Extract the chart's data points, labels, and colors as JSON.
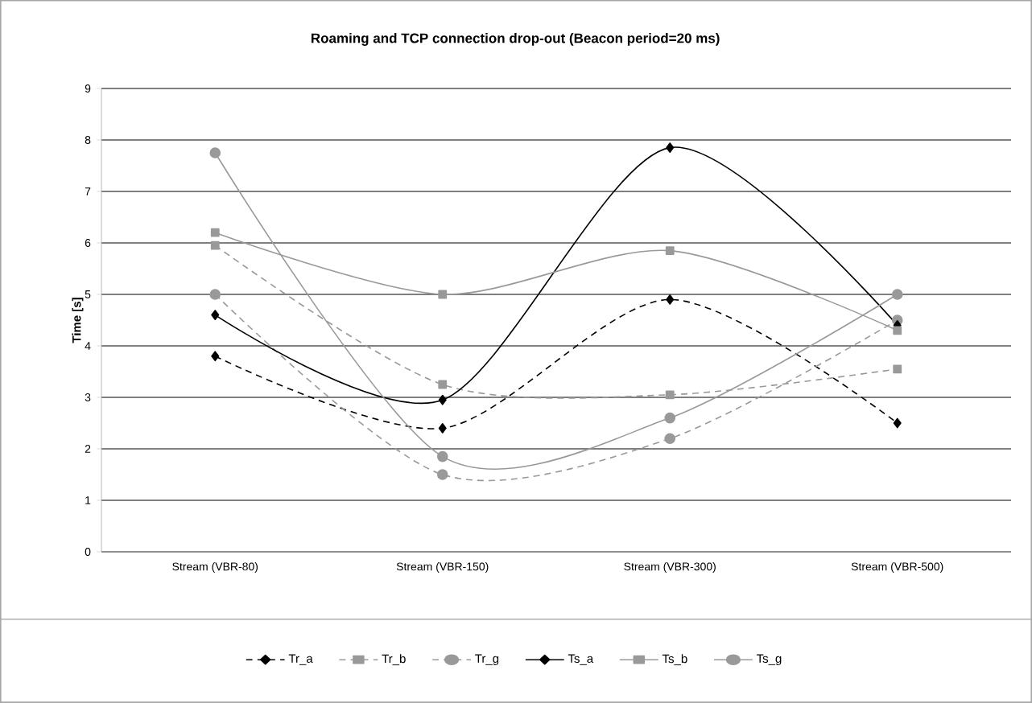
{
  "chart_data": {
    "type": "line",
    "title": "Roaming and TCP connection drop-out (Beacon period=20 ms)",
    "ylabel": "Time [s]",
    "categories": [
      "Stream (VBR-80)",
      "Stream (VBR-150)",
      "Stream (VBR-300)",
      "Stream (VBR-500)"
    ],
    "series": [
      {
        "name": "Tr_a",
        "color": "#000000",
        "marker": "diamond",
        "line_style": "dashed",
        "values": [
          3.8,
          2.4,
          4.9,
          2.5
        ]
      },
      {
        "name": "Tr_b",
        "color": "#999999",
        "marker": "square",
        "line_style": "dashed",
        "values": [
          5.95,
          3.25,
          3.05,
          3.55
        ]
      },
      {
        "name": "Tr_g",
        "color": "#999999",
        "marker": "circle",
        "line_style": "dashed",
        "values": [
          5.0,
          1.5,
          2.2,
          4.5
        ]
      },
      {
        "name": "Ts_a",
        "color": "#000000",
        "marker": "diamond",
        "line_style": "solid",
        "values": [
          4.6,
          2.95,
          7.85,
          4.4
        ]
      },
      {
        "name": "Ts_b",
        "color": "#999999",
        "marker": "square",
        "line_style": "solid",
        "values": [
          6.2,
          5.0,
          5.85,
          4.3
        ]
      },
      {
        "name": "Ts_g",
        "color": "#999999",
        "marker": "circle",
        "line_style": "solid",
        "values": [
          7.75,
          1.85,
          2.6,
          5.0
        ]
      }
    ],
    "ylim": [
      0,
      9
    ],
    "yticks": [
      0,
      1,
      2,
      3,
      4,
      5,
      6,
      7,
      8,
      9
    ],
    "grid": "y",
    "legend": "bottom"
  }
}
